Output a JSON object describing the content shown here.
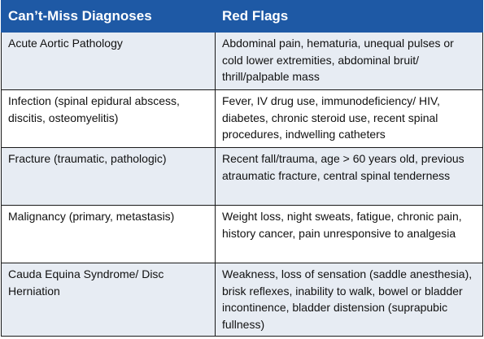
{
  "table": {
    "headers": [
      "Can’t-Miss Diagnoses",
      "Red Flags"
    ],
    "rows": [
      {
        "diagnosis": "Acute Aortic Pathology",
        "red_flags": "Abdominal pain, hematuria, unequal pulses or cold lower extremities, abdominal bruit/ thrill/palpable mass"
      },
      {
        "diagnosis": "Infection (spinal epidural abscess, discitis, osteomyelitis)",
        "red_flags": "Fever, IV drug use, immunodeficiency/ HIV, diabetes, chronic steroid use, recent spinal procedures, indwelling catheters"
      },
      {
        "diagnosis": "Fracture (traumatic, pathologic)",
        "red_flags": "Recent fall/trauma, age > 60 years old, previous atraumatic fracture, central spinal tenderness"
      },
      {
        "diagnosis": "Malignancy (primary, metastasis)",
        "red_flags": "Weight loss, night sweats, fatigue, chronic pain, history cancer, pain unresponsive to analgesia"
      },
      {
        "diagnosis": "Cauda Equina Syndrome/ Disc Herniation",
        "red_flags": "Weakness, loss of sensation (saddle anesthesia), brisk reflexes, inability to walk, bowel or bladder incontinence, bladder distension (suprapubic fullness)"
      }
    ]
  },
  "colors": {
    "header_bg": "#1e59a5",
    "header_text": "#ffffff",
    "row_shade": "#e7ecf3",
    "row_plain": "#ffffff",
    "border": "#1a1a1a"
  }
}
